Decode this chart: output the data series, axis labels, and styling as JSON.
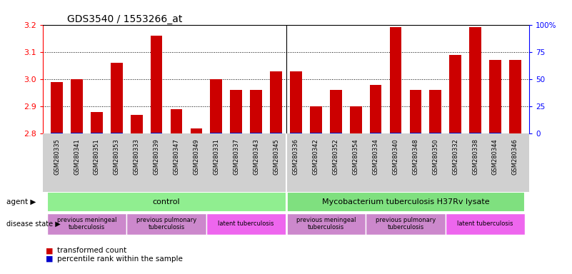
{
  "title": "GDS3540 / 1553266_at",
  "samples": [
    "GSM280335",
    "GSM280341",
    "GSM280351",
    "GSM280353",
    "GSM280333",
    "GSM280339",
    "GSM280347",
    "GSM280349",
    "GSM280331",
    "GSM280337",
    "GSM280343",
    "GSM280345",
    "GSM280336",
    "GSM280342",
    "GSM280352",
    "GSM280354",
    "GSM280334",
    "GSM280340",
    "GSM280348",
    "GSM280350",
    "GSM280332",
    "GSM280338",
    "GSM280344",
    "GSM280346"
  ],
  "red_values": [
    2.99,
    3.0,
    2.88,
    3.06,
    2.87,
    3.16,
    2.89,
    2.82,
    3.0,
    2.96,
    2.96,
    3.03,
    3.03,
    2.9,
    2.96,
    2.9,
    2.98,
    3.19,
    2.96,
    2.96,
    3.09,
    3.19,
    3.07,
    3.07
  ],
  "blue_values": [
    5,
    5,
    5,
    5,
    3,
    8,
    3,
    3,
    5,
    5,
    5,
    7,
    8,
    5,
    7,
    3,
    5,
    8,
    5,
    5,
    7,
    8,
    7,
    2
  ],
  "y_min": 2.8,
  "y_max": 3.2,
  "y_ticks": [
    2.8,
    2.9,
    3.0,
    3.1,
    3.2
  ],
  "y2_ticks": [
    0,
    25,
    50,
    75,
    100
  ],
  "agent_groups": [
    {
      "label": "control",
      "start": 0,
      "end": 11,
      "color": "#90EE90"
    },
    {
      "label": "Mycobacterium tuberculosis H37Rv lysate",
      "start": 12,
      "end": 23,
      "color": "#7FE07F"
    }
  ],
  "disease_groups": [
    {
      "label": "previous meningeal\ntuberculosis",
      "start": 0,
      "end": 3,
      "color": "#CC88CC"
    },
    {
      "label": "previous pulmonary\ntuberculosis",
      "start": 4,
      "end": 7,
      "color": "#CC88CC"
    },
    {
      "label": "latent tuberculosis",
      "start": 8,
      "end": 11,
      "color": "#EE66EE"
    },
    {
      "label": "previous meningeal\ntuberculosis",
      "start": 12,
      "end": 15,
      "color": "#CC88CC"
    },
    {
      "label": "previous pulmonary\ntuberculosis",
      "start": 16,
      "end": 19,
      "color": "#CC88CC"
    },
    {
      "label": "latent tuberculosis",
      "start": 20,
      "end": 23,
      "color": "#EE66EE"
    }
  ],
  "bar_width": 0.6,
  "red_color": "#CC0000",
  "blue_color": "#0000CC",
  "bg_color": "#FFFFFF",
  "xtick_bg": "#D0D0D0"
}
